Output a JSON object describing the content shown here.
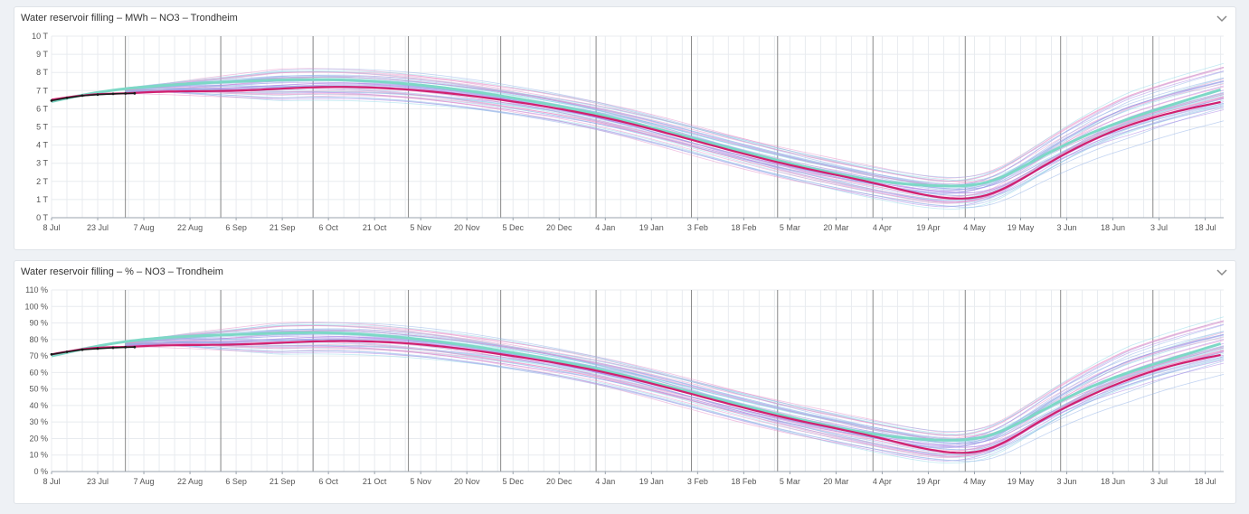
{
  "colors": {
    "forecast_mean": "#7dd8c6",
    "forecast_median": "#d1206f",
    "actual": "#1a1a1a",
    "ensemble_blue": "#8fb0e8",
    "ensemble_cyan": "#8fd8e8",
    "ensemble_purple": "#a97fe6",
    "ensemble_pink": "#e88fc8",
    "grid": "#e8ebef",
    "month_marker": "#6c6c6c"
  },
  "panels": [
    {
      "title": "Water reservoir filling – MWh – NO3 – Trondheim",
      "collapse_icon": "chevron-down-icon"
    },
    {
      "title": "Water reservoir filling – % – NO3 – Trondheim",
      "collapse_icon": "chevron-down-icon"
    }
  ],
  "chart_data": [
    {
      "type": "line",
      "x_ticks": [
        "8 Jul",
        "23 Jul",
        "7 Aug",
        "22 Aug",
        "6 Sep",
        "21 Sep",
        "6 Oct",
        "21 Oct",
        "5 Nov",
        "20 Nov",
        "5 Dec",
        "20 Dec",
        "4 Jan",
        "19 Jan",
        "3 Feb",
        "18 Feb",
        "5 Mar",
        "20 Mar",
        "4 Apr",
        "19 Apr",
        "4 May",
        "19 May",
        "3 Jun",
        "18 Jun",
        "3 Jul",
        "18 Jul"
      ],
      "x_tick_days": [
        0,
        15,
        30,
        45,
        60,
        75,
        90,
        105,
        120,
        135,
        150,
        165,
        180,
        195,
        210,
        225,
        240,
        255,
        270,
        285,
        300,
        315,
        330,
        345,
        360,
        375
      ],
      "month_boundary_days": [
        24,
        55,
        85,
        116,
        146,
        177,
        208,
        236,
        267,
        297,
        328,
        358
      ],
      "x_range_days": [
        0,
        381
      ],
      "y_ticks": [
        "0 T",
        "1 T",
        "2 T",
        "3 T",
        "4 T",
        "5 T",
        "6 T",
        "7 T",
        "8 T",
        "9 T",
        "10 T"
      ],
      "ylim": [
        0,
        10
      ],
      "grid": true,
      "series": {
        "mean": {
          "days": [
            0,
            15,
            30,
            60,
            90,
            120,
            150,
            180,
            210,
            240,
            270,
            290,
            305,
            320,
            340,
            360,
            381
          ],
          "values": [
            6.4,
            6.9,
            7.2,
            7.5,
            7.6,
            7.3,
            6.6,
            5.6,
            4.3,
            3.0,
            2.0,
            1.75,
            2.0,
            3.2,
            4.8,
            6.0,
            7.1
          ]
        },
        "median": {
          "days": [
            0,
            15,
            24,
            30,
            60,
            90,
            120,
            150,
            180,
            210,
            240,
            270,
            290,
            305,
            320,
            340,
            360,
            381
          ],
          "values": [
            6.5,
            6.8,
            6.85,
            6.9,
            7.0,
            7.2,
            7.0,
            6.4,
            5.5,
            4.2,
            2.9,
            1.8,
            1.1,
            1.3,
            2.6,
            4.4,
            5.6,
            6.4
          ]
        },
        "actual": {
          "days": [
            0,
            5,
            10,
            15,
            20,
            24,
            27
          ],
          "values": [
            6.45,
            6.6,
            6.72,
            6.78,
            6.82,
            6.84,
            6.85
          ]
        }
      }
    },
    {
      "type": "line",
      "x_ticks": [
        "8 Jul",
        "23 Jul",
        "7 Aug",
        "22 Aug",
        "6 Sep",
        "21 Sep",
        "6 Oct",
        "21 Oct",
        "5 Nov",
        "20 Nov",
        "5 Dec",
        "20 Dec",
        "4 Jan",
        "19 Jan",
        "3 Feb",
        "18 Feb",
        "5 Mar",
        "20 Mar",
        "4 Apr",
        "19 Apr",
        "4 May",
        "19 May",
        "3 Jun",
        "18 Jun",
        "3 Jul",
        "18 Jul"
      ],
      "x_tick_days": [
        0,
        15,
        30,
        45,
        60,
        75,
        90,
        105,
        120,
        135,
        150,
        165,
        180,
        195,
        210,
        225,
        240,
        255,
        270,
        285,
        300,
        315,
        330,
        345,
        360,
        375
      ],
      "month_boundary_days": [
        24,
        55,
        85,
        116,
        146,
        177,
        208,
        236,
        267,
        297,
        328,
        358
      ],
      "x_range_days": [
        0,
        381
      ],
      "y_ticks": [
        "0 %",
        "10 %",
        "20 %",
        "30 %",
        "40 %",
        "50 %",
        "60 %",
        "70 %",
        "80 %",
        "90 %",
        "100 %",
        "110 %"
      ],
      "ylim": [
        0,
        110
      ],
      "grid": true,
      "series": {
        "mean": {
          "days": [
            0,
            15,
            30,
            60,
            90,
            120,
            150,
            180,
            210,
            240,
            270,
            290,
            305,
            320,
            340,
            360,
            381
          ],
          "values": [
            70,
            76,
            80,
            83,
            84,
            80,
            72,
            61,
            47,
            33,
            22,
            19,
            22,
            35,
            53,
            66,
            78
          ]
        },
        "median": {
          "days": [
            0,
            15,
            24,
            30,
            60,
            90,
            120,
            150,
            180,
            210,
            240,
            270,
            290,
            305,
            320,
            340,
            360,
            381
          ],
          "values": [
            71,
            75,
            75.5,
            76,
            77,
            79,
            77,
            70,
            60,
            46,
            32,
            20,
            12,
            14,
            29,
            48,
            62,
            71
          ]
        },
        "actual": {
          "days": [
            0,
            5,
            10,
            15,
            20,
            24,
            27
          ],
          "values": [
            71,
            72.5,
            73.8,
            74.5,
            75,
            75.3,
            75.4
          ]
        }
      }
    }
  ]
}
